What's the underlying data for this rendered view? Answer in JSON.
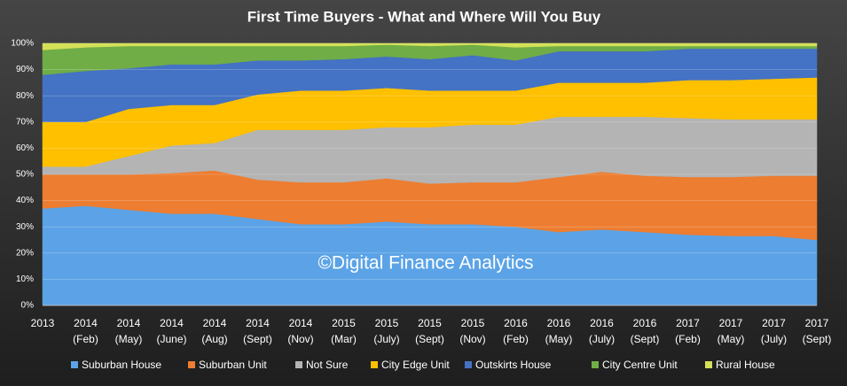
{
  "chart_data": {
    "type": "stacked_area",
    "title": "First Time Buyers -  What and Where Will You Buy",
    "annotation": "©Digital Finance Analytics",
    "categories": [
      [
        "2013"
      ],
      [
        "2014",
        "(Feb)"
      ],
      [
        "2014",
        "(May)"
      ],
      [
        "2014",
        "(June)"
      ],
      [
        "2014",
        "(Aug)"
      ],
      [
        "2014",
        "(Sept)"
      ],
      [
        "2014",
        "(Nov)"
      ],
      [
        "2015",
        "(Mar)"
      ],
      [
        "2015",
        "(July)"
      ],
      [
        "2015",
        "(Sept)"
      ],
      [
        "2015",
        "(Nov)"
      ],
      [
        "2016",
        "(Feb)"
      ],
      [
        "2016",
        "(May)"
      ],
      [
        "2016",
        "(July)"
      ],
      [
        "2016",
        "(Sept)"
      ],
      [
        "2017",
        "(Feb)"
      ],
      [
        "2017",
        "(May)"
      ],
      [
        "2017",
        "(July)"
      ],
      [
        "2017",
        "(Sept)"
      ]
    ],
    "series": [
      {
        "name": "Suburban House",
        "color": "#5ba3e6",
        "values": [
          37,
          38,
          36.5,
          35,
          35,
          33,
          31,
          31,
          32,
          31,
          31,
          30,
          28,
          29,
          28,
          27,
          26.5,
          26.5,
          25
        ]
      },
      {
        "name": "Suburban Unit",
        "color": "#ed7d31",
        "values": [
          13,
          12,
          13.5,
          15.5,
          16.5,
          15,
          16,
          16,
          16.5,
          15.5,
          16,
          17,
          21,
          22,
          21.5,
          22,
          22.5,
          23,
          24.5
        ]
      },
      {
        "name": "Not Sure",
        "color": "#b4b4b4",
        "values": [
          3,
          3,
          7,
          10.5,
          10.5,
          19,
          20,
          20,
          19.5,
          21.5,
          22,
          22,
          23,
          21,
          22.5,
          22.5,
          22,
          21.5,
          21.5
        ]
      },
      {
        "name": "City Edge Unit",
        "color": "#ffc000",
        "values": [
          17,
          17,
          18,
          15.5,
          14.5,
          13.5,
          15,
          15,
          15,
          14,
          13,
          13,
          13,
          13,
          13,
          14.5,
          15,
          15.5,
          16
        ]
      },
      {
        "name": "Outskirts House",
        "color": "#4472c4",
        "values": [
          18,
          19.5,
          15.5,
          15.5,
          15.5,
          13,
          11.5,
          12,
          12,
          12,
          13.5,
          11.5,
          12,
          12,
          12,
          12,
          12,
          11.5,
          11
        ]
      },
      {
        "name": "City Centre Unit",
        "color": "#70ad47",
        "values": [
          9.5,
          9,
          8.5,
          7,
          7,
          5.5,
          5.5,
          5,
          4.5,
          5,
          4,
          5,
          2,
          2,
          2,
          1,
          1,
          1,
          1
        ]
      },
      {
        "name": "Rural House",
        "color": "#d4e157",
        "values": [
          2.5,
          1.5,
          1,
          1,
          1,
          1,
          1,
          1,
          0.5,
          1,
          0.5,
          1.5,
          1,
          1,
          1,
          1,
          1,
          1,
          1
        ]
      }
    ],
    "ylim": [
      0,
      100
    ],
    "yticks": [
      {
        "value": 0,
        "label": "0%"
      },
      {
        "value": 10,
        "label": "10%"
      },
      {
        "value": 20,
        "label": "20%"
      },
      {
        "value": 30,
        "label": "30%"
      },
      {
        "value": 40,
        "label": "40%"
      },
      {
        "value": 50,
        "label": "50%"
      },
      {
        "value": 60,
        "label": "60%"
      },
      {
        "value": 70,
        "label": "70%"
      },
      {
        "value": 80,
        "label": "80%"
      },
      {
        "value": 90,
        "label": "90%"
      },
      {
        "value": 100,
        "label": "100%"
      }
    ],
    "grid": true,
    "legend": "bottom"
  }
}
